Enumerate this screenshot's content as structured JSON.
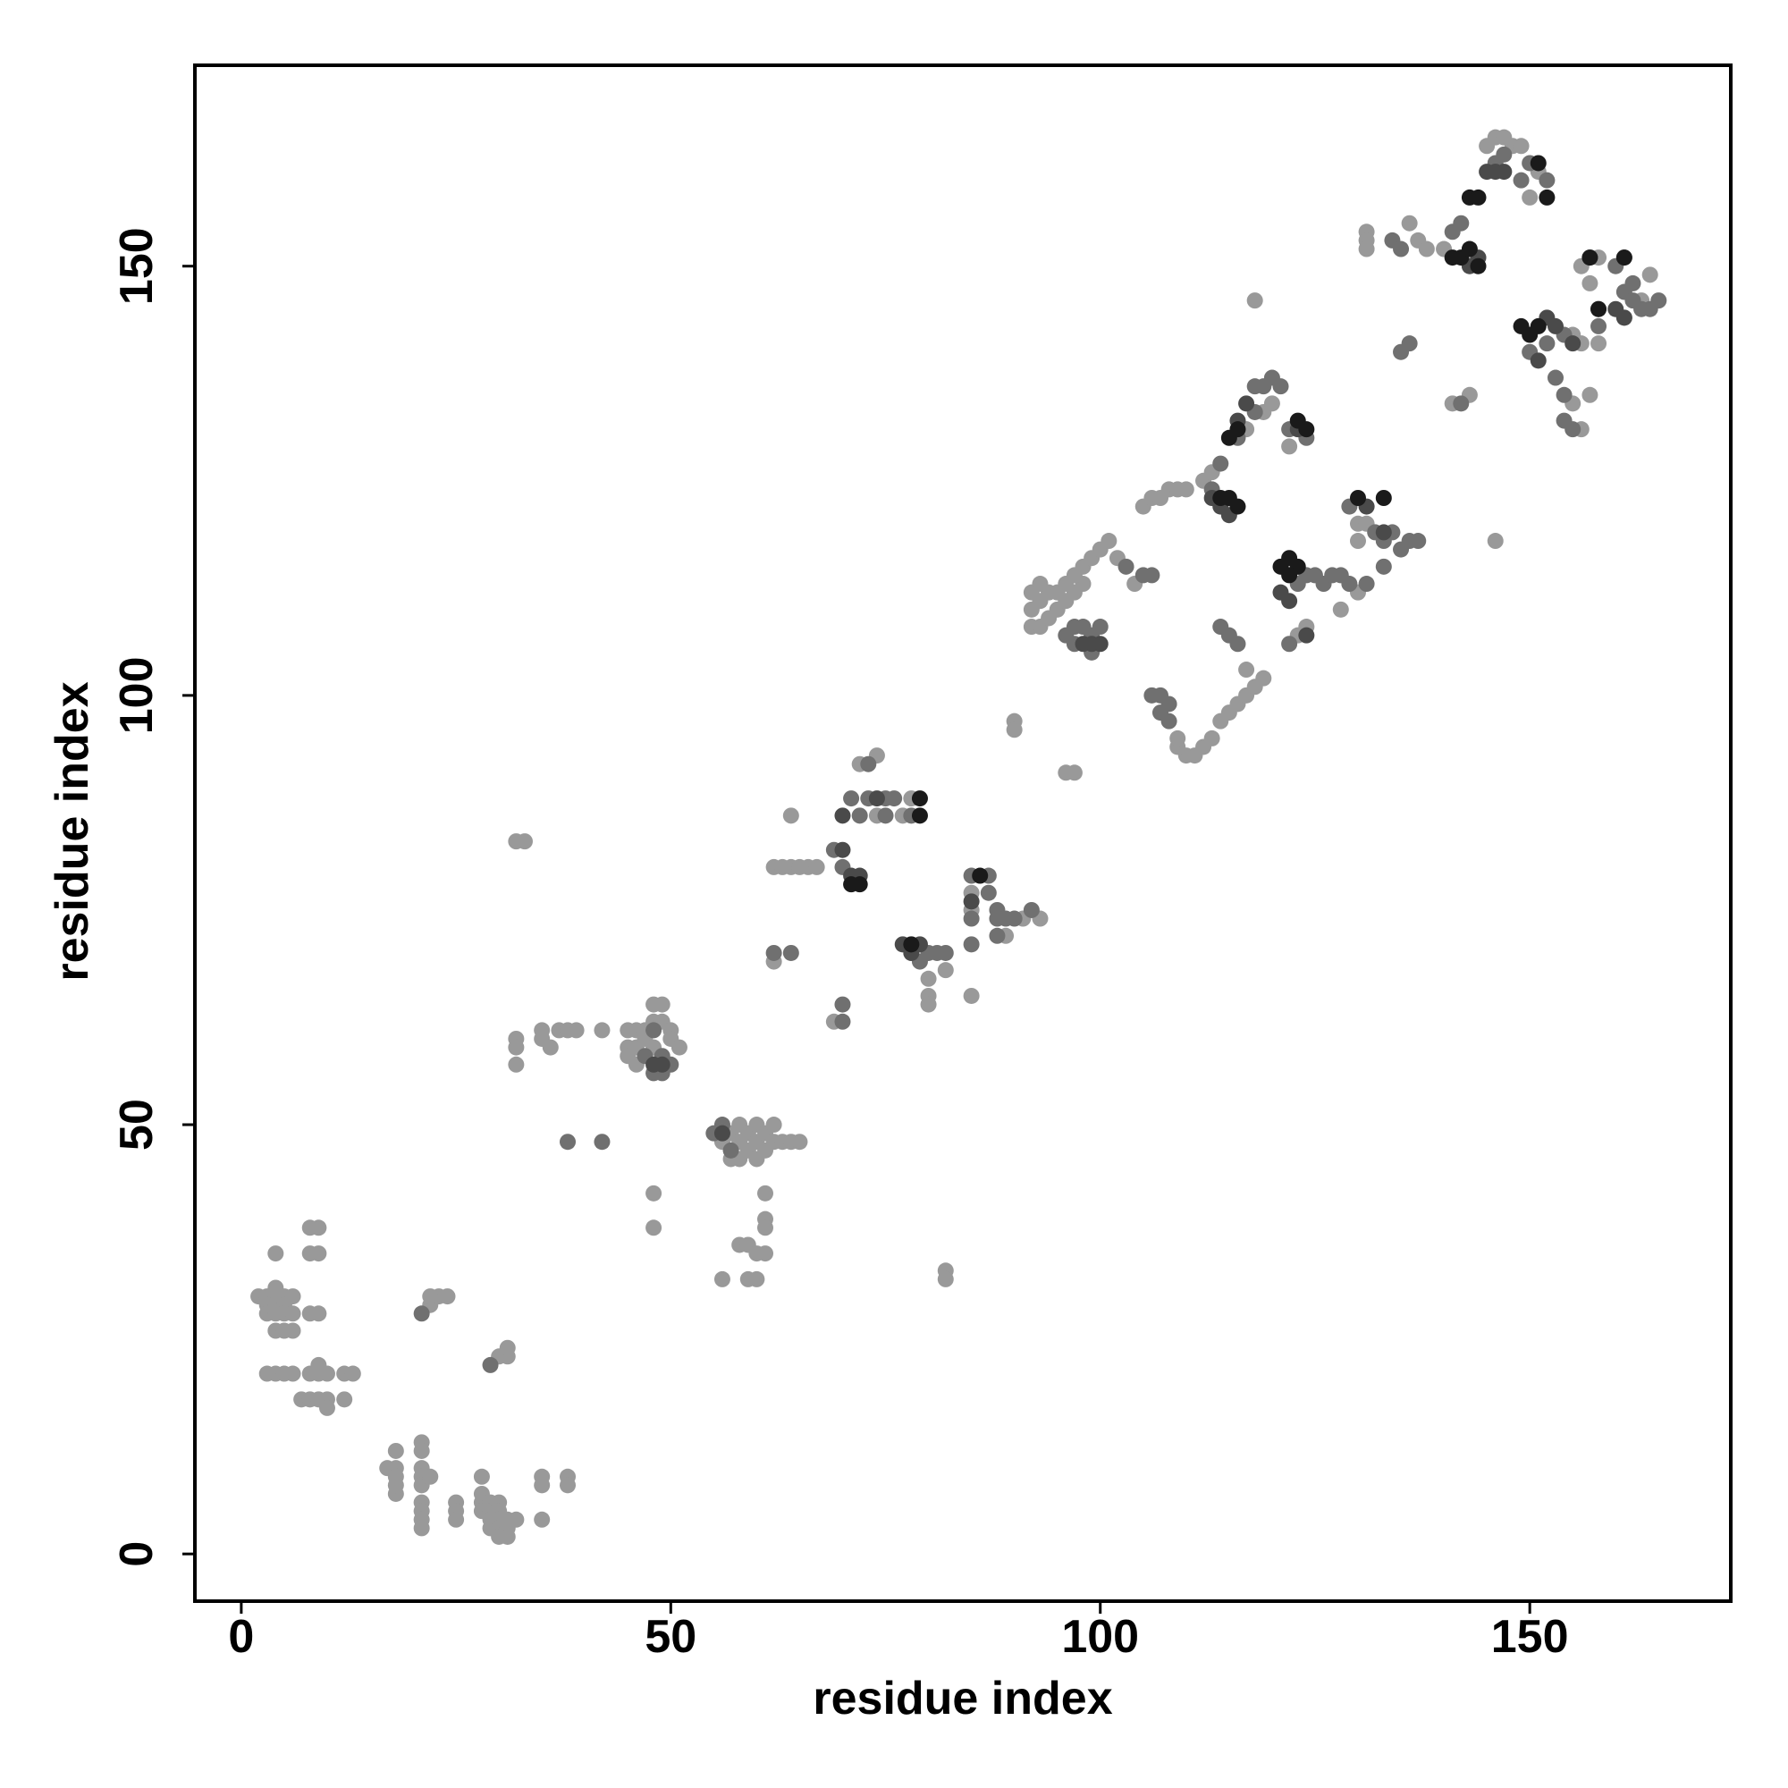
{
  "chart_data": {
    "type": "scatter",
    "x_label": "residue index",
    "y_label": "residue index",
    "xlim": [
      -5.4,
      173.4
    ],
    "ylim": [
      -5.5,
      173.4
    ],
    "xticks": [
      0,
      50,
      100,
      150
    ],
    "yticks": [
      0,
      50,
      100,
      150
    ],
    "grid": false,
    "series": [
      {
        "color": "#999999",
        "x": [
          2,
          3,
          4,
          5,
          6,
          3,
          4,
          5,
          4,
          3,
          4,
          5,
          6,
          8,
          9,
          4,
          8,
          9,
          8,
          9,
          4,
          5,
          6,
          3,
          4,
          5,
          6,
          8,
          9,
          10,
          12,
          13,
          9,
          7,
          8,
          9,
          10,
          12,
          10,
          22,
          23,
          24,
          22,
          30,
          31,
          31,
          17,
          18,
          18,
          18,
          18,
          18,
          21,
          21,
          21,
          21,
          21,
          22,
          21,
          21,
          21,
          21,
          25,
          25,
          25,
          28,
          28,
          28,
          28,
          29,
          29,
          29,
          29,
          30,
          30,
          30,
          30,
          30,
          31,
          31,
          31,
          32,
          35,
          35,
          35,
          38,
          38,
          32,
          33,
          32,
          32,
          32,
          35,
          35,
          36,
          37,
          38,
          39,
          42,
          45,
          46,
          47,
          45,
          46,
          47,
          48,
          48,
          49,
          49,
          50,
          50,
          51,
          45,
          46,
          48,
          48,
          48,
          56,
          57,
          58,
          58,
          59,
          59,
          60,
          60,
          61,
          61,
          62,
          62,
          63,
          64,
          65,
          57,
          58,
          60,
          61,
          61,
          61,
          58,
          59,
          60,
          61,
          56,
          59,
          60,
          62,
          63,
          64,
          65,
          66,
          67,
          64,
          62,
          69,
          72,
          74,
          74,
          77,
          78,
          80,
          80,
          80,
          82,
          85,
          85,
          89,
          91,
          93,
          85,
          82,
          82,
          90,
          90,
          97,
          96,
          92,
          93,
          94,
          95,
          96,
          97,
          98,
          92,
          93,
          94,
          95,
          96,
          97,
          98,
          92,
          93,
          99,
          100,
          101,
          102,
          104,
          110,
          111,
          112,
          113,
          114,
          115,
          116,
          117,
          118,
          119,
          117,
          109,
          109,
          105,
          106,
          107,
          108,
          109,
          110,
          112,
          113,
          118,
          117,
          119,
          120,
          122,
          124,
          123,
          128,
          130,
          130,
          130,
          131,
          146,
          131,
          131,
          131,
          136,
          137,
          138,
          140,
          148,
          149,
          150,
          145,
          146,
          147,
          151,
          141,
          143,
          155,
          157,
          156,
          158,
          161,
          164,
          163,
          156,
          157,
          158,
          155,
          156
        ],
        "values": [
          30,
          30,
          30,
          30,
          30,
          29,
          29,
          29,
          31,
          28,
          28,
          28,
          28,
          28,
          28,
          35,
          38,
          38,
          35,
          35,
          26,
          26,
          26,
          21,
          21,
          21,
          21,
          21,
          21,
          21,
          21,
          21,
          22,
          18,
          18,
          18,
          18,
          18,
          17,
          29,
          30,
          30,
          30,
          23,
          23,
          24,
          10,
          10,
          9,
          7,
          8,
          12,
          13,
          12,
          10,
          9,
          8,
          9,
          6,
          5,
          4,
          3,
          6,
          5,
          4,
          9,
          7,
          6,
          5,
          6,
          5,
          4,
          3,
          6,
          5,
          4,
          3,
          2,
          4,
          3,
          2,
          4,
          9,
          8,
          4,
          9,
          8,
          83,
          83,
          60,
          59,
          57,
          61,
          60,
          59,
          61,
          61,
          61,
          61,
          61,
          61,
          61,
          59,
          59,
          60,
          62,
          64,
          64,
          62,
          61,
          60,
          59,
          58,
          57,
          59,
          42,
          38,
          48,
          49,
          50,
          48,
          47,
          49,
          48,
          50,
          47,
          49,
          48,
          50,
          48,
          48,
          48,
          46,
          46,
          46,
          42,
          39,
          38,
          36,
          36,
          35,
          35,
          32,
          32,
          32,
          80,
          80,
          80,
          80,
          80,
          80,
          86,
          69,
          62,
          92,
          93,
          86,
          86,
          88,
          67,
          65,
          64,
          68,
          77,
          75,
          72,
          74,
          74,
          65,
          33,
          32,
          97,
          96,
          91,
          91,
          108,
          108,
          109,
          110,
          111,
          112,
          113,
          110,
          111,
          112,
          112,
          113,
          114,
          115,
          112,
          113,
          116,
          117,
          118,
          116,
          113,
          93,
          93,
          94,
          95,
          97,
          98,
          99,
          100,
          101,
          102,
          103,
          94,
          95,
          122,
          123,
          123,
          124,
          124,
          124,
          125,
          126,
          146,
          131,
          133,
          134,
          129,
          108,
          107,
          110,
          112,
          118,
          120,
          120,
          118,
          154,
          153,
          152,
          155,
          153,
          152,
          152,
          164,
          164,
          158,
          164,
          165,
          165,
          161,
          134,
          135,
          134,
          135,
          131,
          141,
          144,
          149,
          146,
          150,
          148,
          151,
          142,
          141
        ]
      },
      {
        "color": "#707070",
        "x": [
          21,
          29,
          38,
          42,
          48,
          47,
          49,
          50,
          48,
          49,
          55,
          56,
          57,
          62,
          64,
          70,
          70,
          71,
          73,
          75,
          76,
          72,
          70,
          69,
          75,
          78,
          73,
          80,
          81,
          82,
          79,
          85,
          87,
          87,
          88,
          85,
          88,
          89,
          90,
          92,
          85,
          88,
          96,
          97,
          98,
          99,
          100,
          99,
          97,
          103,
          105,
          106,
          106,
          107,
          108,
          107,
          108,
          116,
          114,
          115,
          114,
          113,
          116,
          118,
          118,
          119,
          120,
          121,
          122,
          124,
          122,
          123,
          124,
          125,
          126,
          127,
          128,
          129,
          131,
          129,
          132,
          133,
          134,
          135,
          136,
          137,
          133,
          134,
          135,
          141,
          142,
          146,
          147,
          150,
          152,
          149,
          135,
          136,
          142,
          153,
          154,
          154,
          155,
          154,
          158,
          158,
          161,
          162,
          163,
          164,
          165,
          160,
          161,
          162,
          157,
          152,
          150
        ],
        "values": [
          28,
          22,
          48,
          48,
          61,
          58,
          58,
          57,
          56,
          56,
          49,
          50,
          47,
          70,
          70,
          64,
          62,
          88,
          88,
          88,
          88,
          86,
          80,
          82,
          86,
          86,
          92,
          70,
          70,
          70,
          69,
          79,
          79,
          77,
          75,
          74,
          74,
          74,
          74,
          75,
          71,
          72,
          107,
          106,
          108,
          107,
          108,
          105,
          108,
          115,
          114,
          114,
          100,
          100,
          99,
          98,
          97,
          106,
          108,
          107,
          127,
          124,
          130,
          133,
          136,
          136,
          137,
          136,
          131,
          130,
          106,
          113,
          114,
          114,
          113,
          114,
          114,
          113,
          113,
          122,
          119,
          118,
          119,
          117,
          118,
          118,
          115,
          153,
          152,
          154,
          155,
          162,
          163,
          162,
          160,
          160,
          140,
          141,
          134,
          137,
          135,
          132,
          131,
          142,
          143,
          145,
          147,
          146,
          145,
          145,
          146,
          150,
          151,
          148,
          151,
          141,
          140
        ]
      },
      {
        "color": "#4a4a4a",
        "x": [
          48,
          49,
          56,
          70,
          71,
          72,
          70,
          74,
          77,
          79,
          78,
          85,
          100,
          99,
          98,
          113,
          114,
          115,
          117,
          116,
          123,
          121,
          122,
          124,
          131,
          133,
          143,
          144,
          145,
          147,
          146,
          151,
          153,
          152,
          155,
          160,
          161
        ],
        "values": [
          57,
          57,
          49,
          82,
          79,
          79,
          86,
          88,
          71,
          71,
          70,
          76,
          106,
          106,
          106,
          123,
          122,
          121,
          134,
          132,
          131,
          112,
          111,
          107,
          122,
          119,
          150,
          151,
          161,
          161,
          161,
          139,
          143,
          144,
          141,
          145,
          144
        ]
      },
      {
        "color": "#1a1a1a",
        "x": [
          71,
          72,
          79,
          79,
          78,
          86,
          121,
          122,
          123,
          122,
          114,
          115,
          116,
          115,
          116,
          123,
          124,
          130,
          133,
          141,
          142,
          143,
          144,
          143,
          144,
          151,
          152,
          149,
          150,
          151,
          157,
          158,
          161
        ],
        "values": [
          78,
          78,
          88,
          86,
          71,
          79,
          115,
          116,
          115,
          114,
          123,
          123,
          122,
          130,
          131,
          132,
          131,
          123,
          123,
          151,
          151,
          152,
          150,
          158,
          158,
          162,
          158,
          143,
          142,
          143,
          151,
          145,
          151
        ]
      }
    ]
  }
}
